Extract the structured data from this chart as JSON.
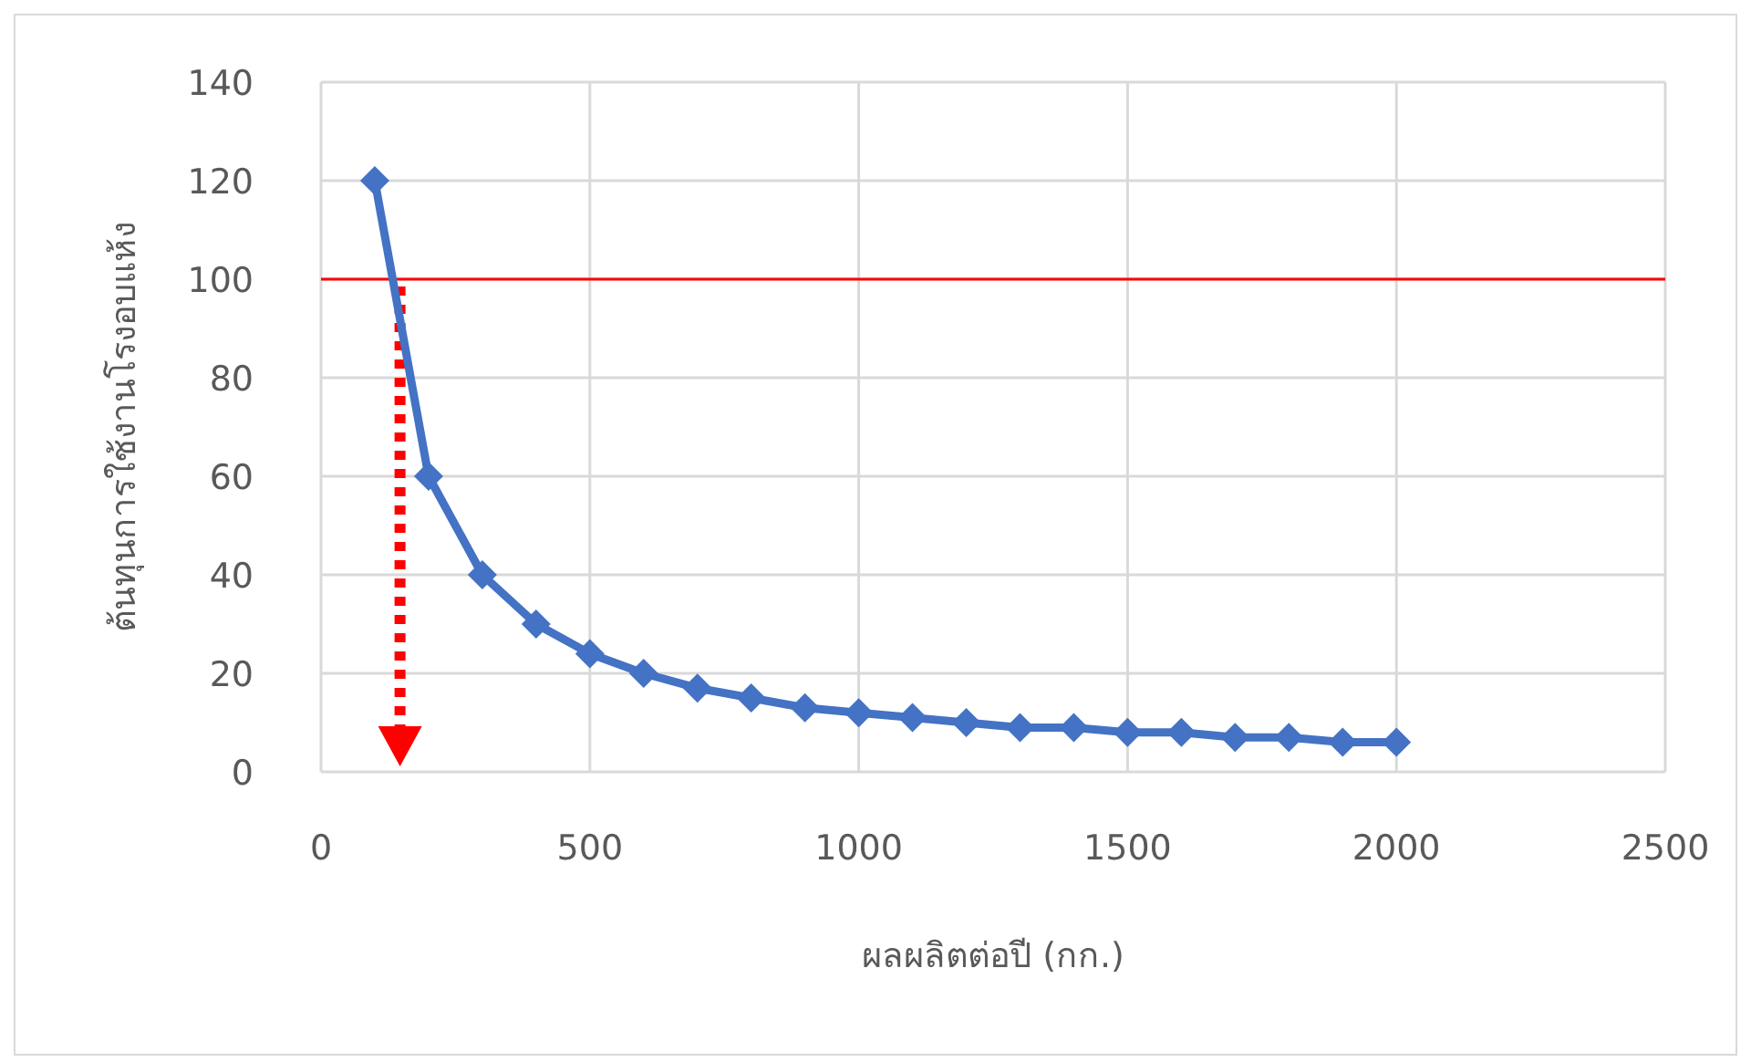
{
  "chart_data": {
    "type": "line",
    "xlabel": "ผลผลิตต่อปี (กก.)",
    "ylabel": "ต้นทุนการใช้งานโรงอบแห้ง",
    "x": [
      100,
      200,
      300,
      400,
      500,
      600,
      700,
      800,
      900,
      1000,
      1100,
      1200,
      1300,
      1400,
      1500,
      1600,
      1700,
      1800,
      1900,
      2000
    ],
    "series": [
      {
        "color": "#4472c4",
        "values": [
          120,
          60,
          40,
          30,
          24,
          20,
          17,
          15,
          13,
          12,
          11,
          10,
          9,
          9,
          8,
          8,
          7,
          7,
          6,
          6
        ]
      }
    ],
    "xlim": [
      0,
      2500
    ],
    "xticks": [
      0,
      500,
      1000,
      1500,
      2000,
      2500
    ],
    "ylim": [
      0,
      140
    ],
    "yticks": [
      0,
      20,
      40,
      60,
      80,
      100,
      120,
      140
    ],
    "grid": true,
    "marker": "diamond",
    "line_style": "solid",
    "ref_lines": [
      {
        "axis": "y",
        "value": 100,
        "color": "#ff0000"
      }
    ]
  }
}
